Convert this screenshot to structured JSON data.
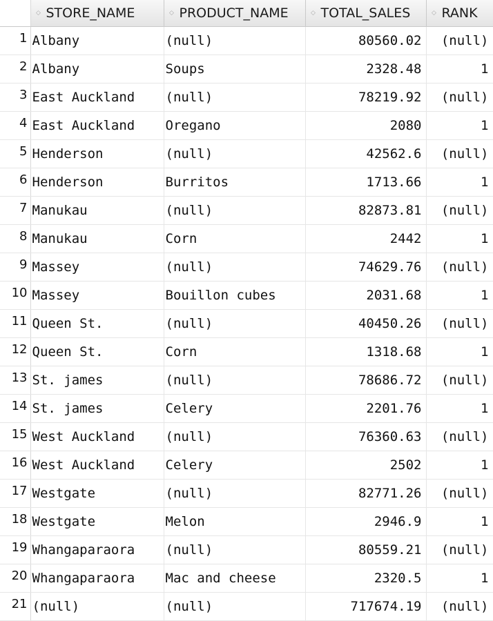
{
  "grid": {
    "columns": [
      {
        "key": "store_name",
        "label": "STORE_NAME",
        "icon": "sort-icon"
      },
      {
        "key": "product_name",
        "label": "PRODUCT_NAME",
        "icon": "sort-icon"
      },
      {
        "key": "total_sales",
        "label": "TOTAL_SALES",
        "icon": "sort-icon"
      },
      {
        "key": "rank",
        "label": "RANK",
        "icon": "sort-icon"
      }
    ],
    "rows": [
      {
        "n": "1",
        "store_name": "Albany",
        "product_name": "(null)",
        "total_sales": "80560.02",
        "rank": "(null)"
      },
      {
        "n": "2",
        "store_name": "Albany",
        "product_name": "Soups",
        "total_sales": "2328.48",
        "rank": "1"
      },
      {
        "n": "3",
        "store_name": "East Auckland",
        "product_name": "(null)",
        "total_sales": "78219.92",
        "rank": "(null)"
      },
      {
        "n": "4",
        "store_name": "East Auckland",
        "product_name": "Oregano",
        "total_sales": "2080",
        "rank": "1"
      },
      {
        "n": "5",
        "store_name": "Henderson",
        "product_name": "(null)",
        "total_sales": "42562.6",
        "rank": "(null)"
      },
      {
        "n": "6",
        "store_name": "Henderson",
        "product_name": "Burritos",
        "total_sales": "1713.66",
        "rank": "1"
      },
      {
        "n": "7",
        "store_name": "Manukau",
        "product_name": "(null)",
        "total_sales": "82873.81",
        "rank": "(null)"
      },
      {
        "n": "8",
        "store_name": "Manukau",
        "product_name": "Corn",
        "total_sales": "2442",
        "rank": "1"
      },
      {
        "n": "9",
        "store_name": "Massey",
        "product_name": "(null)",
        "total_sales": "74629.76",
        "rank": "(null)"
      },
      {
        "n": "10",
        "store_name": "Massey",
        "product_name": "Bouillon cubes",
        "total_sales": "2031.68",
        "rank": "1"
      },
      {
        "n": "11",
        "store_name": "Queen St.",
        "product_name": "(null)",
        "total_sales": "40450.26",
        "rank": "(null)"
      },
      {
        "n": "12",
        "store_name": "Queen St.",
        "product_name": "Corn",
        "total_sales": "1318.68",
        "rank": "1"
      },
      {
        "n": "13",
        "store_name": "St. james",
        "product_name": "(null)",
        "total_sales": "78686.72",
        "rank": "(null)"
      },
      {
        "n": "14",
        "store_name": "St. james",
        "product_name": "Celery",
        "total_sales": "2201.76",
        "rank": "1"
      },
      {
        "n": "15",
        "store_name": "West Auckland",
        "product_name": "(null)",
        "total_sales": "76360.63",
        "rank": "(null)"
      },
      {
        "n": "16",
        "store_name": "West Auckland",
        "product_name": "Celery",
        "total_sales": "2502",
        "rank": "1"
      },
      {
        "n": "17",
        "store_name": "Westgate",
        "product_name": "(null)",
        "total_sales": "82771.26",
        "rank": "(null)"
      },
      {
        "n": "18",
        "store_name": "Westgate",
        "product_name": "Melon",
        "total_sales": "2946.9",
        "rank": "1"
      },
      {
        "n": "19",
        "store_name": "Whangaparaora",
        "product_name": "(null)",
        "total_sales": "80559.21",
        "rank": "(null)"
      },
      {
        "n": "20",
        "store_name": "Whangaparaora",
        "product_name": "Mac and cheese",
        "total_sales": "2320.5",
        "rank": "1"
      },
      {
        "n": "21",
        "store_name": "(null)",
        "product_name": "(null)",
        "total_sales": "717674.19",
        "rank": "(null)"
      }
    ]
  }
}
